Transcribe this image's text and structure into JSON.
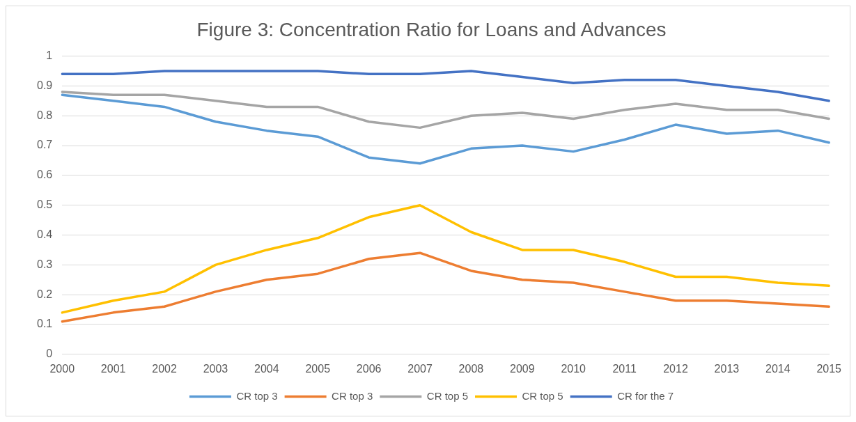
{
  "chart_data": {
    "type": "line",
    "title": "Figure 3: Concentration Ratio for Loans and Advances",
    "categories": [
      "2000",
      "2001",
      "2002",
      "2003",
      "2004",
      "2005",
      "2006",
      "2007",
      "2008",
      "2009",
      "2010",
      "2011",
      "2012",
      "2013",
      "2014",
      "2015"
    ],
    "series": [
      {
        "name": "CR top 3",
        "color": "#5b9bd5",
        "values": [
          0.87,
          0.85,
          0.83,
          0.78,
          0.75,
          0.73,
          0.66,
          0.64,
          0.69,
          0.7,
          0.68,
          0.72,
          0.77,
          0.74,
          0.75,
          0.71
        ]
      },
      {
        "name": "CR top 3",
        "color": "#ed7d31",
        "values": [
          0.11,
          0.14,
          0.16,
          0.21,
          0.25,
          0.27,
          0.32,
          0.34,
          0.28,
          0.25,
          0.24,
          0.21,
          0.18,
          0.18,
          0.17,
          0.16
        ]
      },
      {
        "name": "CR top 5",
        "color": "#a5a5a5",
        "values": [
          0.88,
          0.87,
          0.87,
          0.85,
          0.83,
          0.83,
          0.78,
          0.76,
          0.8,
          0.81,
          0.79,
          0.82,
          0.84,
          0.82,
          0.82,
          0.79
        ]
      },
      {
        "name": "CR top 5",
        "color": "#ffc000",
        "values": [
          0.14,
          0.18,
          0.21,
          0.3,
          0.35,
          0.39,
          0.46,
          0.5,
          0.41,
          0.35,
          0.35,
          0.31,
          0.26,
          0.26,
          0.24,
          0.23
        ]
      },
      {
        "name": "CR for the 7",
        "color": "#4472c4",
        "values": [
          0.94,
          0.94,
          0.95,
          0.95,
          0.95,
          0.95,
          0.94,
          0.94,
          0.95,
          0.93,
          0.91,
          0.92,
          0.92,
          0.9,
          0.88,
          0.85
        ]
      }
    ],
    "ylim": [
      0,
      1
    ],
    "yticks": [
      0,
      0.1,
      0.2,
      0.3,
      0.4,
      0.5,
      0.6,
      0.7,
      0.8,
      0.9,
      1
    ],
    "grid": "y",
    "legend": "bottom",
    "marker": "none",
    "line_style": "solid"
  }
}
